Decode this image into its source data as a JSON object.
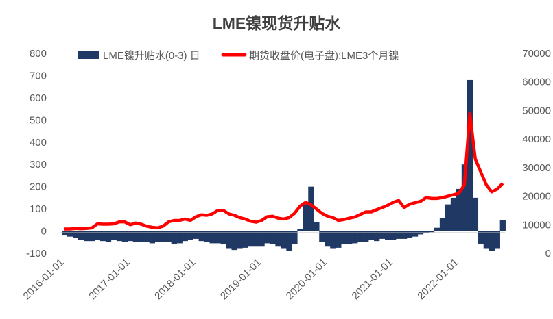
{
  "chart_data": {
    "type": "bar+line",
    "title": "LME镍现货升贴水",
    "legend_placement": "top",
    "x_ticks": [
      "2016-01-01",
      "2017-01-01",
      "2018-01-01",
      "2019-01-01",
      "2020-01-01",
      "2021-01-01",
      "2022-01-01"
    ],
    "left_axis": {
      "ticks": [
        "800",
        "700",
        "600",
        "500",
        "400",
        "300",
        "200",
        "100",
        "0",
        "-100"
      ],
      "ylim": [
        -100,
        800
      ]
    },
    "right_axis": {
      "ticks": [
        "70000",
        "60000",
        "50000",
        "40000",
        "30000",
        "20000",
        "10000",
        "0"
      ],
      "ylim": [
        0,
        70000
      ]
    },
    "start_month": "2016-01",
    "series": [
      {
        "name": "LME镍升贴水(0-3) 日",
        "type": "bar",
        "axis": "left",
        "color": "#1F3864",
        "values": [
          -20,
          -25,
          -30,
          -40,
          -45,
          -45,
          -40,
          -45,
          -50,
          -40,
          -45,
          -50,
          -45,
          -50,
          -50,
          -50,
          -55,
          -50,
          -50,
          -50,
          -60,
          -55,
          -45,
          -40,
          -35,
          -45,
          -50,
          -55,
          -55,
          -60,
          -80,
          -85,
          -80,
          -75,
          -70,
          -70,
          -70,
          -55,
          -60,
          -70,
          -80,
          -90,
          -60,
          10,
          120,
          200,
          40,
          -50,
          -70,
          -80,
          -75,
          -60,
          -60,
          -55,
          -50,
          -50,
          -40,
          -45,
          -35,
          -40,
          -40,
          -35,
          -35,
          -30,
          -25,
          -15,
          -10,
          -5,
          15,
          60,
          120,
          150,
          190,
          300,
          680,
          150,
          -60,
          -80,
          -90,
          -80,
          50
        ]
      },
      {
        "name": "期货收盘价(电子盘):LME3个月镍",
        "type": "line",
        "axis": "right",
        "color": "#FF0000",
        "values": [
          8500,
          8500,
          8700,
          8600,
          8700,
          8900,
          10300,
          10200,
          10200,
          10300,
          11000,
          11000,
          10000,
          10600,
          10200,
          9500,
          9100,
          8900,
          9500,
          11000,
          11500,
          11500,
          12000,
          11500,
          12800,
          13500,
          13300,
          13800,
          15000,
          15000,
          13800,
          13300,
          12500,
          12000,
          11200,
          10900,
          11500,
          12800,
          13000,
          12300,
          12000,
          12500,
          14000,
          16500,
          17800,
          17000,
          15500,
          14000,
          13000,
          12500,
          11500,
          11800,
          12300,
          12700,
          13600,
          14500,
          14500,
          15300,
          16000,
          16800,
          17800,
          18500,
          16000,
          17200,
          17700,
          18200,
          19500,
          19200,
          19200,
          19500,
          20000,
          20500,
          21000,
          24000,
          49000,
          33000,
          28500,
          24000,
          21500,
          22500,
          24500
        ]
      }
    ]
  }
}
